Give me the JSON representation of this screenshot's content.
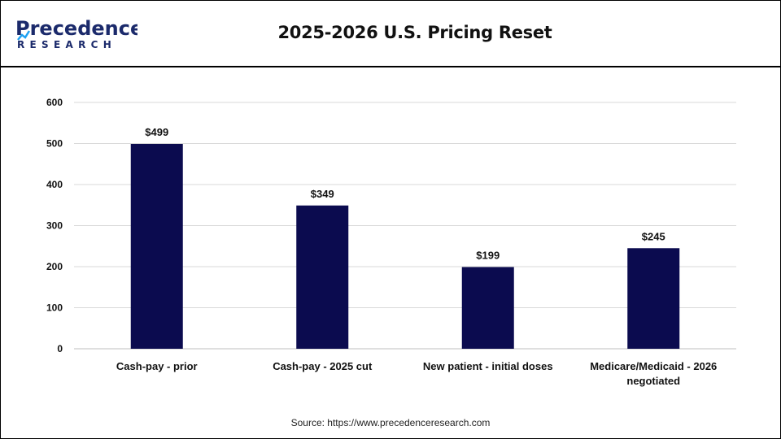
{
  "header": {
    "title": "2025-2026 U.S. Pricing Reset",
    "logo_line1": "Precedence",
    "logo_line2": "RESEARCH"
  },
  "footer": {
    "source": "Source: https://www.precedenceresearch.com"
  },
  "colors": {
    "bar": "#0b0b4f",
    "logo_navy": "#1b2a6b",
    "logo_blue": "#1da1f2"
  },
  "chart_data": {
    "type": "bar",
    "title": "2025-2026 U.S. Pricing Reset",
    "xlabel": "",
    "ylabel": "",
    "categories": [
      [
        "Cash-pay - prior"
      ],
      [
        "Cash-pay - 2025 cut"
      ],
      [
        "New patient - initial doses"
      ],
      [
        "Medicare/Medicaid - 2026",
        "negotiated"
      ]
    ],
    "values": [
      499,
      349,
      199,
      245
    ],
    "data_labels": [
      "$499",
      "$349",
      "$199",
      "$245"
    ],
    "yticks": [
      0,
      100,
      200,
      300,
      400,
      500,
      600
    ],
    "ylim": [
      0,
      600
    ],
    "grid": true,
    "legend": "none"
  }
}
